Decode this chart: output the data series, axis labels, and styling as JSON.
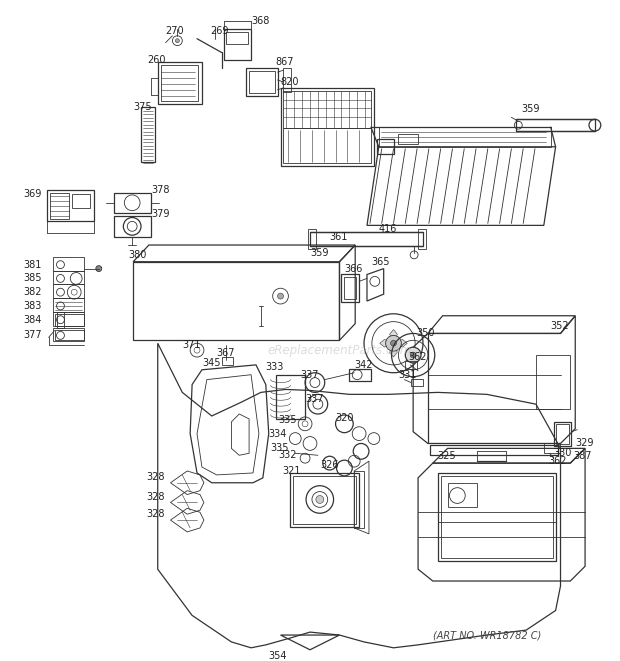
{
  "art_no": "(ART NO. WR18782 C)",
  "watermark": "eReplacementParts.com",
  "bg_color": "#ffffff",
  "line_color": "#333333",
  "label_color": "#222222",
  "watermark_color": "#bbbbbb",
  "fig_width": 6.2,
  "fig_height": 6.61,
  "dpi": 100
}
